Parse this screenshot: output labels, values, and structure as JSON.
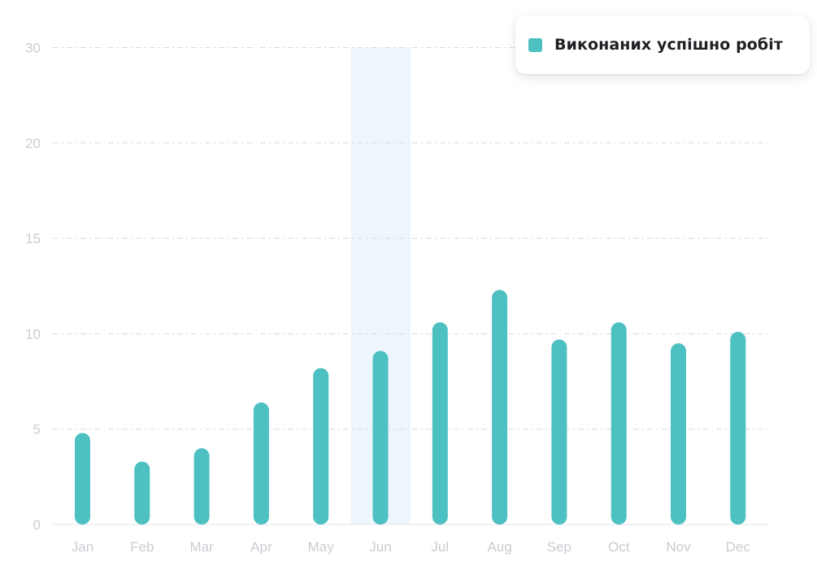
{
  "chart_data": {
    "type": "bar",
    "categories": [
      "Jan",
      "Feb",
      "Mar",
      "Apr",
      "May",
      "Jun",
      "Jul",
      "Aug",
      "Sep",
      "Oct",
      "Nov",
      "Dec"
    ],
    "series": [
      {
        "name": "Виконаних успішно робіт",
        "color": "#4dc0c1",
        "values": [
          4.8,
          3.3,
          4.0,
          6.4,
          8.2,
          9.1,
          10.6,
          12.3,
          9.7,
          10.6,
          9.5,
          10.1
        ]
      }
    ],
    "highlighted_category": "Jun",
    "highlight_color": "#edf6fd",
    "y_ticks": [
      0,
      5,
      10,
      15,
      20,
      30
    ],
    "ylim": [
      0,
      25
    ],
    "grid": true,
    "legend_position": "top-right",
    "title": "",
    "xlabel": "",
    "ylabel": ""
  }
}
